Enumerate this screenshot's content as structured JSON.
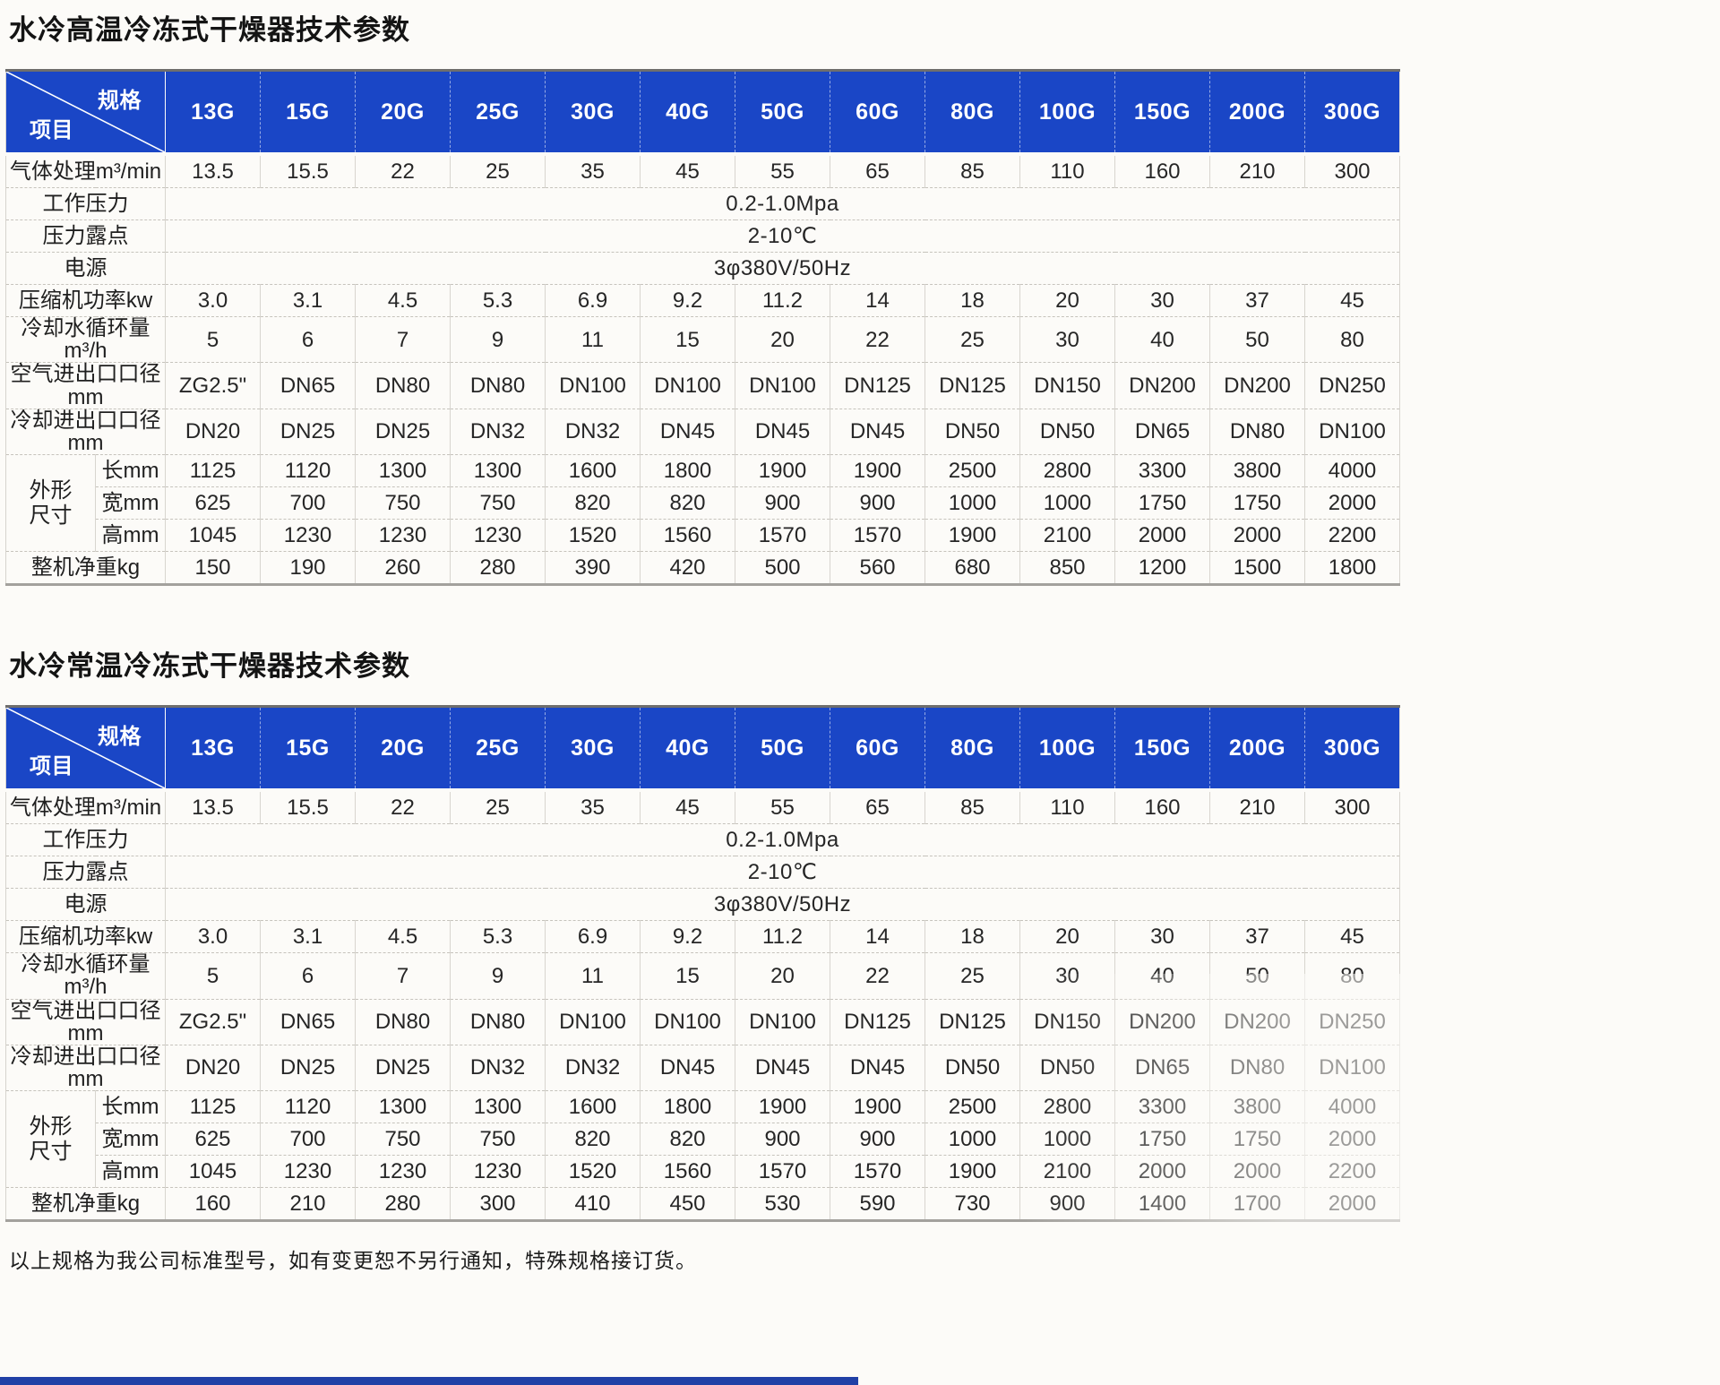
{
  "page": {
    "background": "#fcfbf8",
    "accent_blue": "#1a46c6",
    "footer_note": "以上规格为我公司标准型号，如有变更恕不另行通知，特殊规格接订货。"
  },
  "tables": [
    {
      "title": "水冷高温冷冻式干燥器技术参数",
      "corner": {
        "top_right": "规格",
        "bottom_left": "项目"
      },
      "columns": [
        "13G",
        "15G",
        "20G",
        "25G",
        "30G",
        "40G",
        "50G",
        "60G",
        "80G",
        "100G",
        "150G",
        "200G",
        "300G"
      ],
      "rows": [
        {
          "label": "气体处理m³/min",
          "values": [
            "13.5",
            "15.5",
            "22",
            "25",
            "35",
            "45",
            "55",
            "65",
            "85",
            "110",
            "160",
            "210",
            "300"
          ]
        },
        {
          "label": "工作压力",
          "merged": "0.2-1.0Mpa"
        },
        {
          "label": "压力露点",
          "merged": "2-10℃"
        },
        {
          "label": "电源",
          "merged": "3φ380V/50Hz"
        },
        {
          "label": "压缩机功率kw",
          "values": [
            "3.0",
            "3.1",
            "4.5",
            "5.3",
            "6.9",
            "9.2",
            "11.2",
            "14",
            "18",
            "20",
            "30",
            "37",
            "45"
          ]
        },
        {
          "label": "冷却水循环量m³/h",
          "values": [
            "5",
            "6",
            "7",
            "9",
            "11",
            "15",
            "20",
            "22",
            "25",
            "30",
            "40",
            "50",
            "80"
          ]
        },
        {
          "label": "空气进出口口径mm",
          "values": [
            "ZG2.5\"",
            "DN65",
            "DN80",
            "DN80",
            "DN100",
            "DN100",
            "DN100",
            "DN125",
            "DN125",
            "DN150",
            "DN200",
            "DN200",
            "DN250"
          ]
        },
        {
          "label": "冷却进出口口径mm",
          "values": [
            "DN20",
            "DN25",
            "DN25",
            "DN32",
            "DN32",
            "DN45",
            "DN45",
            "DN45",
            "DN50",
            "DN50",
            "DN65",
            "DN80",
            "DN100"
          ]
        },
        {
          "group": "外形尺寸",
          "subrows": [
            {
              "label": "长mm",
              "values": [
                "1125",
                "1120",
                "1300",
                "1300",
                "1600",
                "1800",
                "1900",
                "1900",
                "2500",
                "2800",
                "3300",
                "3800",
                "4000"
              ]
            },
            {
              "label": "宽mm",
              "values": [
                "625",
                "700",
                "750",
                "750",
                "820",
                "820",
                "900",
                "900",
                "1000",
                "1000",
                "1750",
                "1750",
                "2000"
              ]
            },
            {
              "label": "高mm",
              "values": [
                "1045",
                "1230",
                "1230",
                "1230",
                "1520",
                "1560",
                "1570",
                "1570",
                "1900",
                "2100",
                "2000",
                "2000",
                "2200"
              ]
            }
          ]
        },
        {
          "label": "整机净重kg",
          "values": [
            "150",
            "190",
            "260",
            "280",
            "390",
            "420",
            "500",
            "560",
            "680",
            "850",
            "1200",
            "1500",
            "1800"
          ]
        }
      ]
    },
    {
      "title": "水冷常温冷冻式干燥器技术参数",
      "corner": {
        "top_right": "规格",
        "bottom_left": "项目"
      },
      "columns": [
        "13G",
        "15G",
        "20G",
        "25G",
        "30G",
        "40G",
        "50G",
        "60G",
        "80G",
        "100G",
        "150G",
        "200G",
        "300G"
      ],
      "rows": [
        {
          "label": "气体处理m³/min",
          "values": [
            "13.5",
            "15.5",
            "22",
            "25",
            "35",
            "45",
            "55",
            "65",
            "85",
            "110",
            "160",
            "210",
            "300"
          ]
        },
        {
          "label": "工作压力",
          "merged": "0.2-1.0Mpa"
        },
        {
          "label": "压力露点",
          "merged": "2-10℃"
        },
        {
          "label": "电源",
          "merged": "3φ380V/50Hz"
        },
        {
          "label": "压缩机功率kw",
          "values": [
            "3.0",
            "3.1",
            "4.5",
            "5.3",
            "6.9",
            "9.2",
            "11.2",
            "14",
            "18",
            "20",
            "30",
            "37",
            "45"
          ]
        },
        {
          "label": "冷却水循环量m³/h",
          "values": [
            "5",
            "6",
            "7",
            "9",
            "11",
            "15",
            "20",
            "22",
            "25",
            "30",
            "40",
            "50",
            "80"
          ]
        },
        {
          "label": "空气进出口口径mm",
          "values": [
            "ZG2.5\"",
            "DN65",
            "DN80",
            "DN80",
            "DN100",
            "DN100",
            "DN100",
            "DN125",
            "DN125",
            "DN150",
            "DN200",
            "DN200",
            "DN250"
          ]
        },
        {
          "label": "冷却进出口口径mm",
          "values": [
            "DN20",
            "DN25",
            "DN25",
            "DN32",
            "DN32",
            "DN45",
            "DN45",
            "DN45",
            "DN50",
            "DN50",
            "DN65",
            "DN80",
            "DN100"
          ]
        },
        {
          "group": "外形尺寸",
          "subrows": [
            {
              "label": "长mm",
              "values": [
                "1125",
                "1120",
                "1300",
                "1300",
                "1600",
                "1800",
                "1900",
                "1900",
                "2500",
                "2800",
                "3300",
                "3800",
                "4000"
              ]
            },
            {
              "label": "宽mm",
              "values": [
                "625",
                "700",
                "750",
                "750",
                "820",
                "820",
                "900",
                "900",
                "1000",
                "1000",
                "1750",
                "1750",
                "2000"
              ]
            },
            {
              "label": "高mm",
              "values": [
                "1045",
                "1230",
                "1230",
                "1230",
                "1520",
                "1560",
                "1570",
                "1570",
                "1900",
                "2100",
                "2000",
                "2000",
                "2200"
              ]
            }
          ]
        },
        {
          "label": "整机净重kg",
          "values": [
            "160",
            "210",
            "280",
            "300",
            "410",
            "450",
            "530",
            "590",
            "730",
            "900",
            "1400",
            "1700",
            "2000"
          ]
        }
      ]
    }
  ]
}
